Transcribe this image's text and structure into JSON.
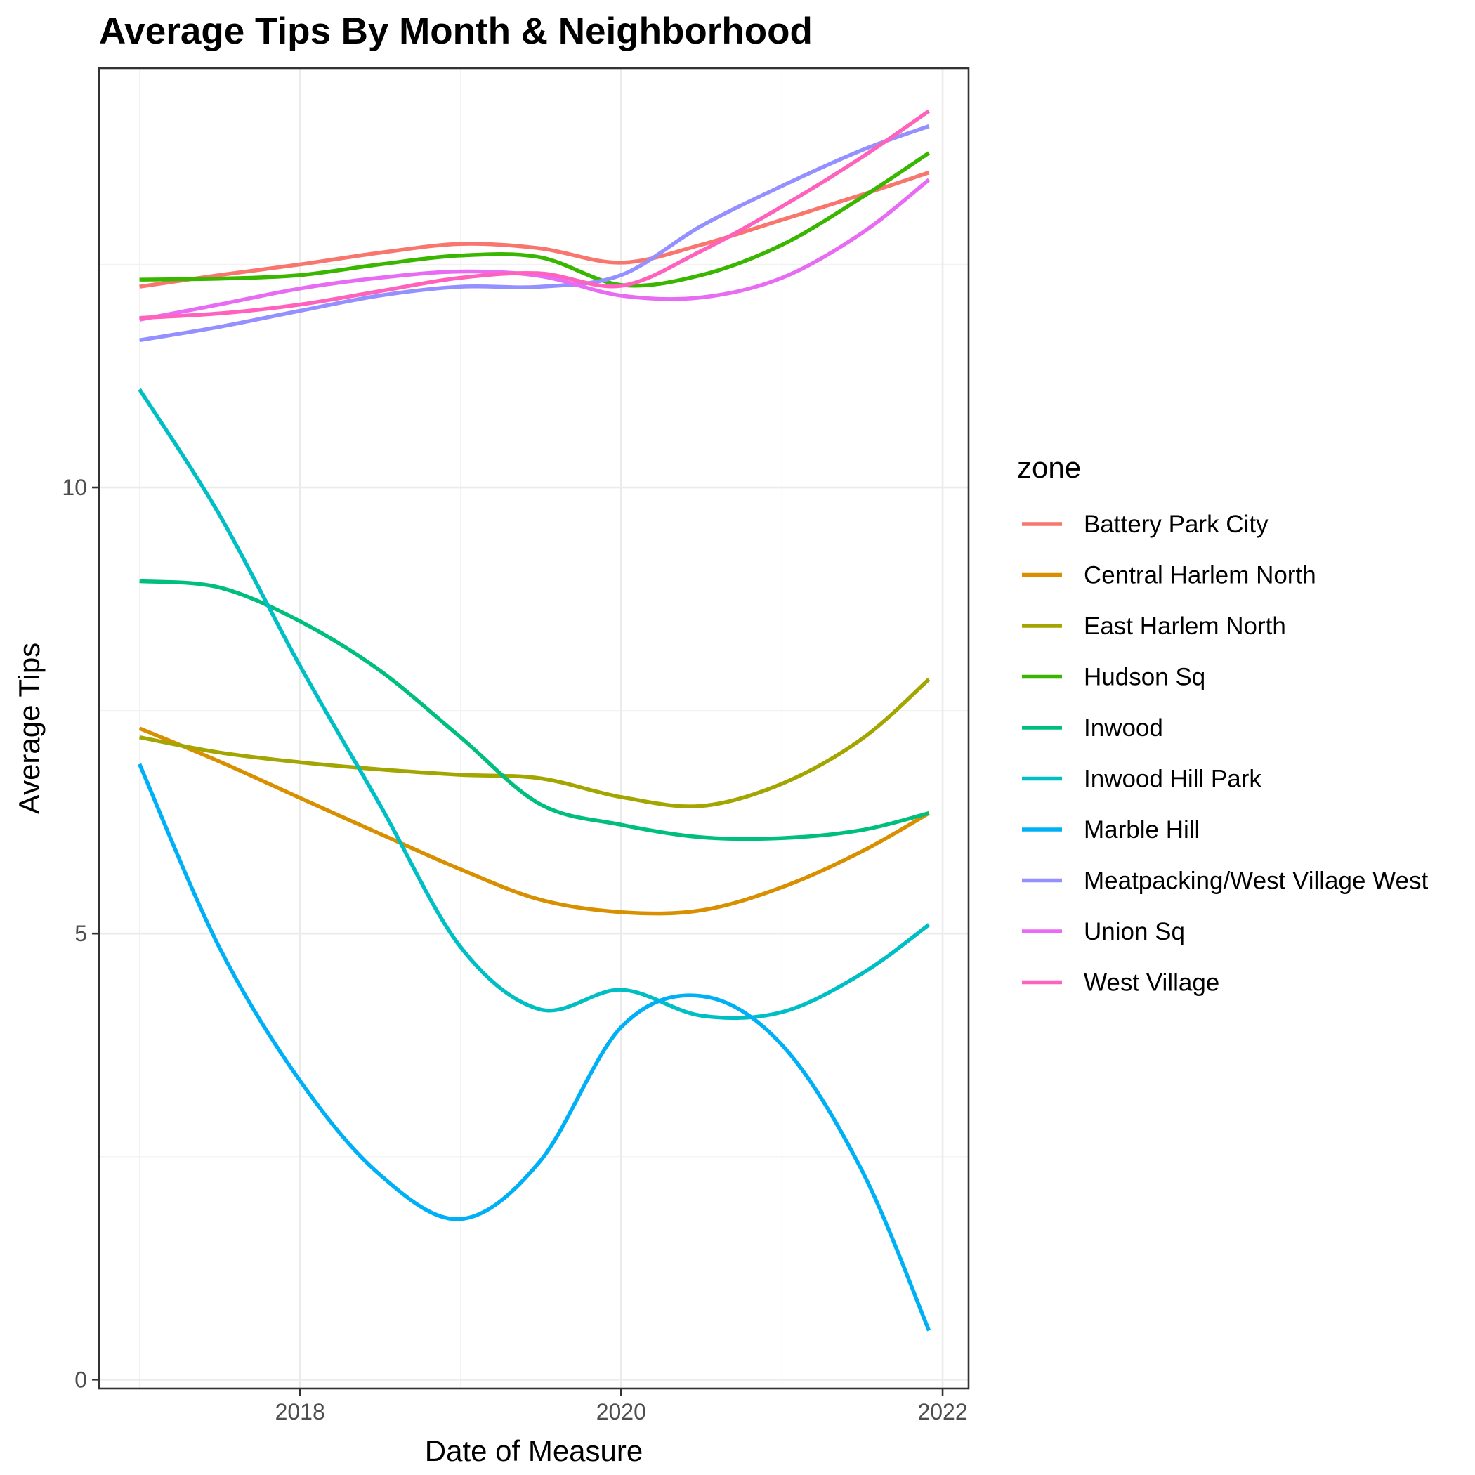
{
  "chart_data": {
    "type": "line",
    "title": "Average Tips By Month & Neighborhood",
    "xlabel": "Date of Measure",
    "ylabel": "Average Tips",
    "x_ticks": [
      "2018",
      "2020",
      "2022"
    ],
    "y_ticks": [
      "0",
      "5",
      "10"
    ],
    "xlim": [
      "2016-10-01",
      "2022-03-01"
    ],
    "ylim": [
      -0.1,
      14.7
    ],
    "grid": true,
    "legend": {
      "title": "zone",
      "position": "right"
    },
    "x": [
      "2017-01-01",
      "2017-07-01",
      "2018-01-01",
      "2018-07-01",
      "2019-01-01",
      "2019-07-01",
      "2020-01-01",
      "2020-07-01",
      "2021-01-01",
      "2021-07-01",
      "2021-12-01"
    ],
    "series": [
      {
        "name": "Battery Park City",
        "color": "#F8766D",
        "values": [
          12.25,
          12.38,
          12.5,
          12.63,
          12.73,
          12.68,
          12.52,
          12.72,
          13.0,
          13.28,
          13.53
        ]
      },
      {
        "name": "Central Harlem North",
        "color": "#D89000",
        "values": [
          7.3,
          6.93,
          6.52,
          6.12,
          5.72,
          5.38,
          5.24,
          5.26,
          5.52,
          5.92,
          6.35
        ]
      },
      {
        "name": "East Harlem North",
        "color": "#A3A500",
        "values": [
          7.2,
          7.03,
          6.92,
          6.84,
          6.78,
          6.74,
          6.53,
          6.43,
          6.68,
          7.18,
          7.85
        ]
      },
      {
        "name": "Hudson Sq",
        "color": "#39B600",
        "values": [
          12.33,
          12.34,
          12.38,
          12.5,
          12.6,
          12.58,
          12.27,
          12.38,
          12.72,
          13.25,
          13.75
        ]
      },
      {
        "name": "Inwood",
        "color": "#00BF7D",
        "values": [
          8.95,
          8.88,
          8.5,
          7.95,
          7.2,
          6.45,
          6.22,
          6.08,
          6.07,
          6.16,
          6.35
        ]
      },
      {
        "name": "Inwood Hill Park",
        "color": "#00BFC4",
        "values": [
          11.1,
          9.7,
          8.0,
          6.45,
          4.85,
          4.15,
          4.37,
          4.08,
          4.12,
          4.55,
          5.1
        ]
      },
      {
        "name": "Marble Hill",
        "color": "#00B0F6",
        "values": [
          6.9,
          4.85,
          3.35,
          2.3,
          1.8,
          2.45,
          3.95,
          4.3,
          3.75,
          2.35,
          0.55
        ]
      },
      {
        "name": "Meatpacking/West Village West",
        "color": "#9590FF",
        "values": [
          11.65,
          11.8,
          11.98,
          12.15,
          12.25,
          12.25,
          12.38,
          12.93,
          13.38,
          13.78,
          14.05
        ]
      },
      {
        "name": "Union Sq",
        "color": "#E76BF3",
        "values": [
          11.88,
          12.05,
          12.23,
          12.35,
          12.42,
          12.37,
          12.15,
          12.13,
          12.35,
          12.85,
          13.45
        ]
      },
      {
        "name": "West Village",
        "color": "#FF62BC",
        "values": [
          11.9,
          11.95,
          12.05,
          12.2,
          12.35,
          12.4,
          12.26,
          12.65,
          13.15,
          13.7,
          14.22
        ]
      }
    ]
  }
}
